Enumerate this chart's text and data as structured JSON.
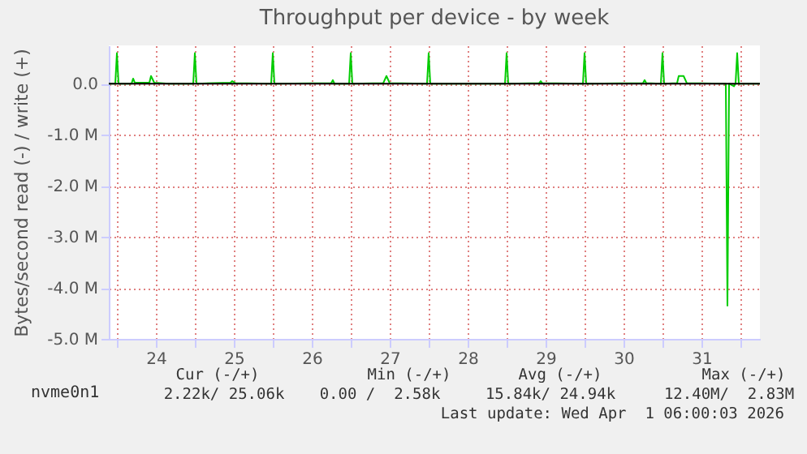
{
  "chart_data": {
    "type": "line",
    "title": "Throughput per device - by week",
    "ylabel": "Bytes/second read (-) / write (+)",
    "x": [
      "2026-03-23T21:30",
      "2026-03-23T23:30",
      "2026-03-24T00:00",
      "2026-03-24T00:30",
      "2026-03-24T04:30",
      "2026-03-24T05:00",
      "2026-03-24T05:30",
      "2026-03-24T10:00",
      "2026-03-24T10:30",
      "2026-03-24T11:30",
      "2026-03-24T16:00",
      "2026-03-24T23:30",
      "2026-03-25T00:00",
      "2026-03-25T00:30",
      "2026-03-25T11:00",
      "2026-03-25T11:30",
      "2026-03-25T12:30",
      "2026-03-25T23:30",
      "2026-03-26T00:00",
      "2026-03-26T00:30",
      "2026-03-26T18:00",
      "2026-03-26T18:30",
      "2026-03-26T19:00",
      "2026-03-26T23:30",
      "2026-03-27T00:00",
      "2026-03-27T00:30",
      "2026-03-27T10:00",
      "2026-03-27T11:00",
      "2026-03-27T12:00",
      "2026-03-27T23:30",
      "2026-03-28T00:00",
      "2026-03-28T00:30",
      "2026-03-28T23:30",
      "2026-03-29T00:00",
      "2026-03-29T00:30",
      "2026-03-29T10:00",
      "2026-03-29T10:30",
      "2026-03-29T11:00",
      "2026-03-29T23:30",
      "2026-03-30T00:00",
      "2026-03-30T00:30",
      "2026-03-30T18:00",
      "2026-03-30T18:30",
      "2026-03-30T19:00",
      "2026-03-30T23:30",
      "2026-03-31T00:00",
      "2026-03-31T00:30",
      "2026-03-31T04:30",
      "2026-03-31T05:00",
      "2026-03-31T06:30",
      "2026-03-31T07:30",
      "2026-03-31T19:30",
      "2026-03-31T20:00",
      "2026-03-31T20:30",
      "2026-03-31T22:00",
      "2026-03-31T22:30",
      "2026-03-31T23:00",
      "2026-03-31T23:30",
      "2026-04-01T06:00"
    ],
    "series": [
      {
        "name": "nvme0n1",
        "color": "#00cc00",
        "values": [
          0,
          0,
          600000,
          0,
          0,
          100000,
          20000,
          20000,
          150000,
          20000,
          0,
          0,
          600000,
          0,
          20000,
          50000,
          10000,
          0,
          600000,
          0,
          10000,
          70000,
          0,
          0,
          600000,
          0,
          10000,
          150000,
          10000,
          0,
          600000,
          0,
          0,
          600000,
          0,
          10000,
          50000,
          10000,
          0,
          600000,
          0,
          10000,
          70000,
          10000,
          0,
          600000,
          0,
          10000,
          150000,
          150000,
          10000,
          0,
          -4350000,
          0,
          -50000,
          0,
          600000,
          0,
          0
        ]
      }
    ],
    "xlim": [
      "2026-03-23T21:30",
      "2026-04-01T06:00"
    ],
    "xticks": [
      {
        "value": "2026-03-24T00:00",
        "label": null
      },
      {
        "value": "2026-03-24T12:00",
        "label": "24"
      },
      {
        "value": "2026-03-25T00:00",
        "label": null
      },
      {
        "value": "2026-03-25T12:00",
        "label": "25"
      },
      {
        "value": "2026-03-26T00:00",
        "label": null
      },
      {
        "value": "2026-03-26T12:00",
        "label": "26"
      },
      {
        "value": "2026-03-27T00:00",
        "label": null
      },
      {
        "value": "2026-03-27T12:00",
        "label": "27"
      },
      {
        "value": "2026-03-28T00:00",
        "label": null
      },
      {
        "value": "2026-03-28T12:00",
        "label": "28"
      },
      {
        "value": "2026-03-29T00:00",
        "label": null
      },
      {
        "value": "2026-03-29T12:00",
        "label": "29"
      },
      {
        "value": "2026-03-30T00:00",
        "label": null
      },
      {
        "value": "2026-03-30T12:00",
        "label": "30"
      },
      {
        "value": "2026-03-31T00:00",
        "label": null
      },
      {
        "value": "2026-03-31T12:00",
        "label": "31"
      },
      {
        "value": "2026-04-01T00:00",
        "label": null
      }
    ],
    "ylim": [
      -5000000,
      750000
    ],
    "yticks": [
      {
        "value": -5000000,
        "label": "-5.0 M"
      },
      {
        "value": -4000000,
        "label": "-4.0 M"
      },
      {
        "value": -3000000,
        "label": "-3.0 M"
      },
      {
        "value": -2000000,
        "label": "-2.0 M"
      },
      {
        "value": -1000000,
        "label": "-1.0 M"
      },
      {
        "value": 0,
        "label": "0.0"
      }
    ],
    "ref_lines": [
      {
        "axis": "y",
        "value": 0,
        "color": "#000000"
      }
    ],
    "grid": true,
    "legend": "bottom",
    "annotations": [
      "Cur (-/+)",
      "Min (-/+)",
      "Avg (-/+)",
      "Max (-/+)",
      "2.22k/ 25.06k",
      "0.00 /  2.58k",
      "15.84k/ 24.94k",
      "12.40M/  2.83M",
      "Last update: Wed Apr  1 06:00:03 2026"
    ]
  }
}
